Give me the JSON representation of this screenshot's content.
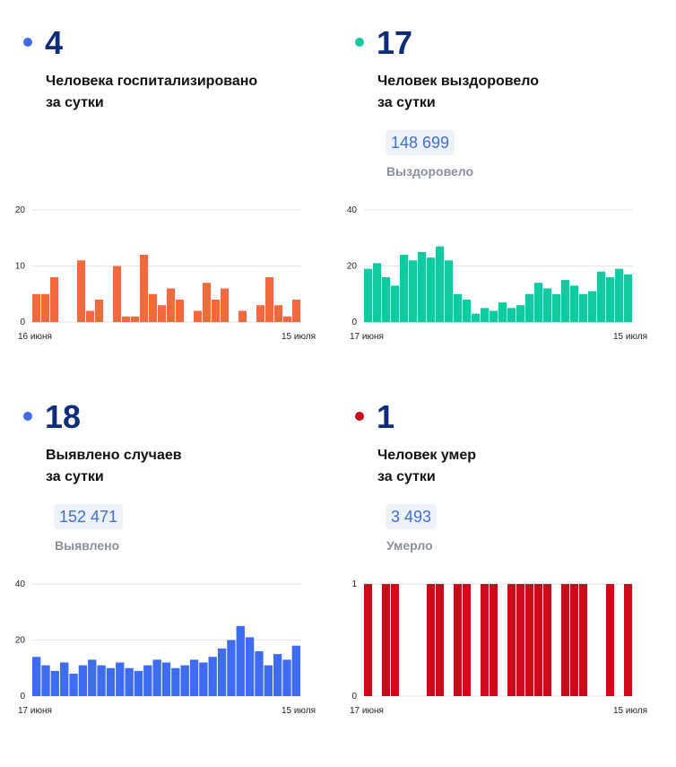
{
  "panels": [
    {
      "number": "4",
      "caption_line1": "Человека госпитализировано",
      "caption_line2": "за сутки",
      "total": "",
      "total_label": "",
      "color": "#f06a3e",
      "dot_color": "#3d6cf0"
    },
    {
      "number": "17",
      "caption_line1": "Человек выздоровело",
      "caption_line2": "за сутки",
      "total": "148 699",
      "total_label": "Выздоровело",
      "color": "#12c9a0",
      "dot_color": "#12c9a0"
    },
    {
      "number": "18",
      "caption_line1": "Выявлено случаев",
      "caption_line2": "за сутки",
      "total": "152 471",
      "total_label": "Выявлено",
      "color": "#3d6cf0",
      "dot_color": "#3d6cf0"
    },
    {
      "number": "1",
      "caption_line1": "Человек умер",
      "caption_line2": "за сутки",
      "total": "3 493",
      "total_label": "Умерло",
      "color": "#cc0a1a",
      "dot_color": "#cc0a1a"
    }
  ],
  "chart_data": [
    {
      "type": "bar",
      "x_start_label": "16 июня",
      "x_end_label": "15 июля",
      "yticks": [
        0,
        10,
        20
      ],
      "ylim": [
        0,
        20
      ],
      "grid": true,
      "values": [
        5,
        5,
        8,
        0,
        0,
        11,
        2,
        4,
        0,
        10,
        1,
        1,
        12,
        5,
        3,
        6,
        4,
        0,
        2,
        7,
        4,
        6,
        0,
        2,
        0,
        3,
        8,
        3,
        1,
        4
      ]
    },
    {
      "type": "bar",
      "x_start_label": "17 июня",
      "x_end_label": "15 июля",
      "yticks": [
        0,
        20,
        40
      ],
      "ylim": [
        0,
        40
      ],
      "grid": true,
      "values": [
        19,
        21,
        16,
        13,
        24,
        22,
        25,
        23,
        27,
        22,
        10,
        8,
        3,
        5,
        4,
        7,
        5,
        6,
        10,
        14,
        12,
        10,
        15,
        13,
        10,
        11,
        18,
        16,
        19,
        17
      ]
    },
    {
      "type": "bar",
      "x_start_label": "17 июня",
      "x_end_label": "15 июля",
      "yticks": [
        0,
        20,
        40
      ],
      "ylim": [
        0,
        40
      ],
      "grid": true,
      "values": [
        14,
        11,
        9,
        12,
        8,
        11,
        13,
        11,
        10,
        12,
        10,
        9,
        11,
        13,
        12,
        10,
        11,
        13,
        12,
        14,
        17,
        20,
        25,
        21,
        16,
        11,
        15,
        13,
        18
      ]
    },
    {
      "type": "bar",
      "x_start_label": "17 июня",
      "x_end_label": "15 июля",
      "yticks": [
        0,
        1
      ],
      "ylim": [
        0,
        1
      ],
      "grid": true,
      "values": [
        1,
        0,
        1,
        1,
        0,
        0,
        0,
        1,
        1,
        0,
        1,
        1,
        0,
        1,
        1,
        0,
        1,
        1,
        1,
        1,
        1,
        0,
        1,
        1,
        1,
        0,
        0,
        1,
        0,
        1
      ]
    }
  ]
}
